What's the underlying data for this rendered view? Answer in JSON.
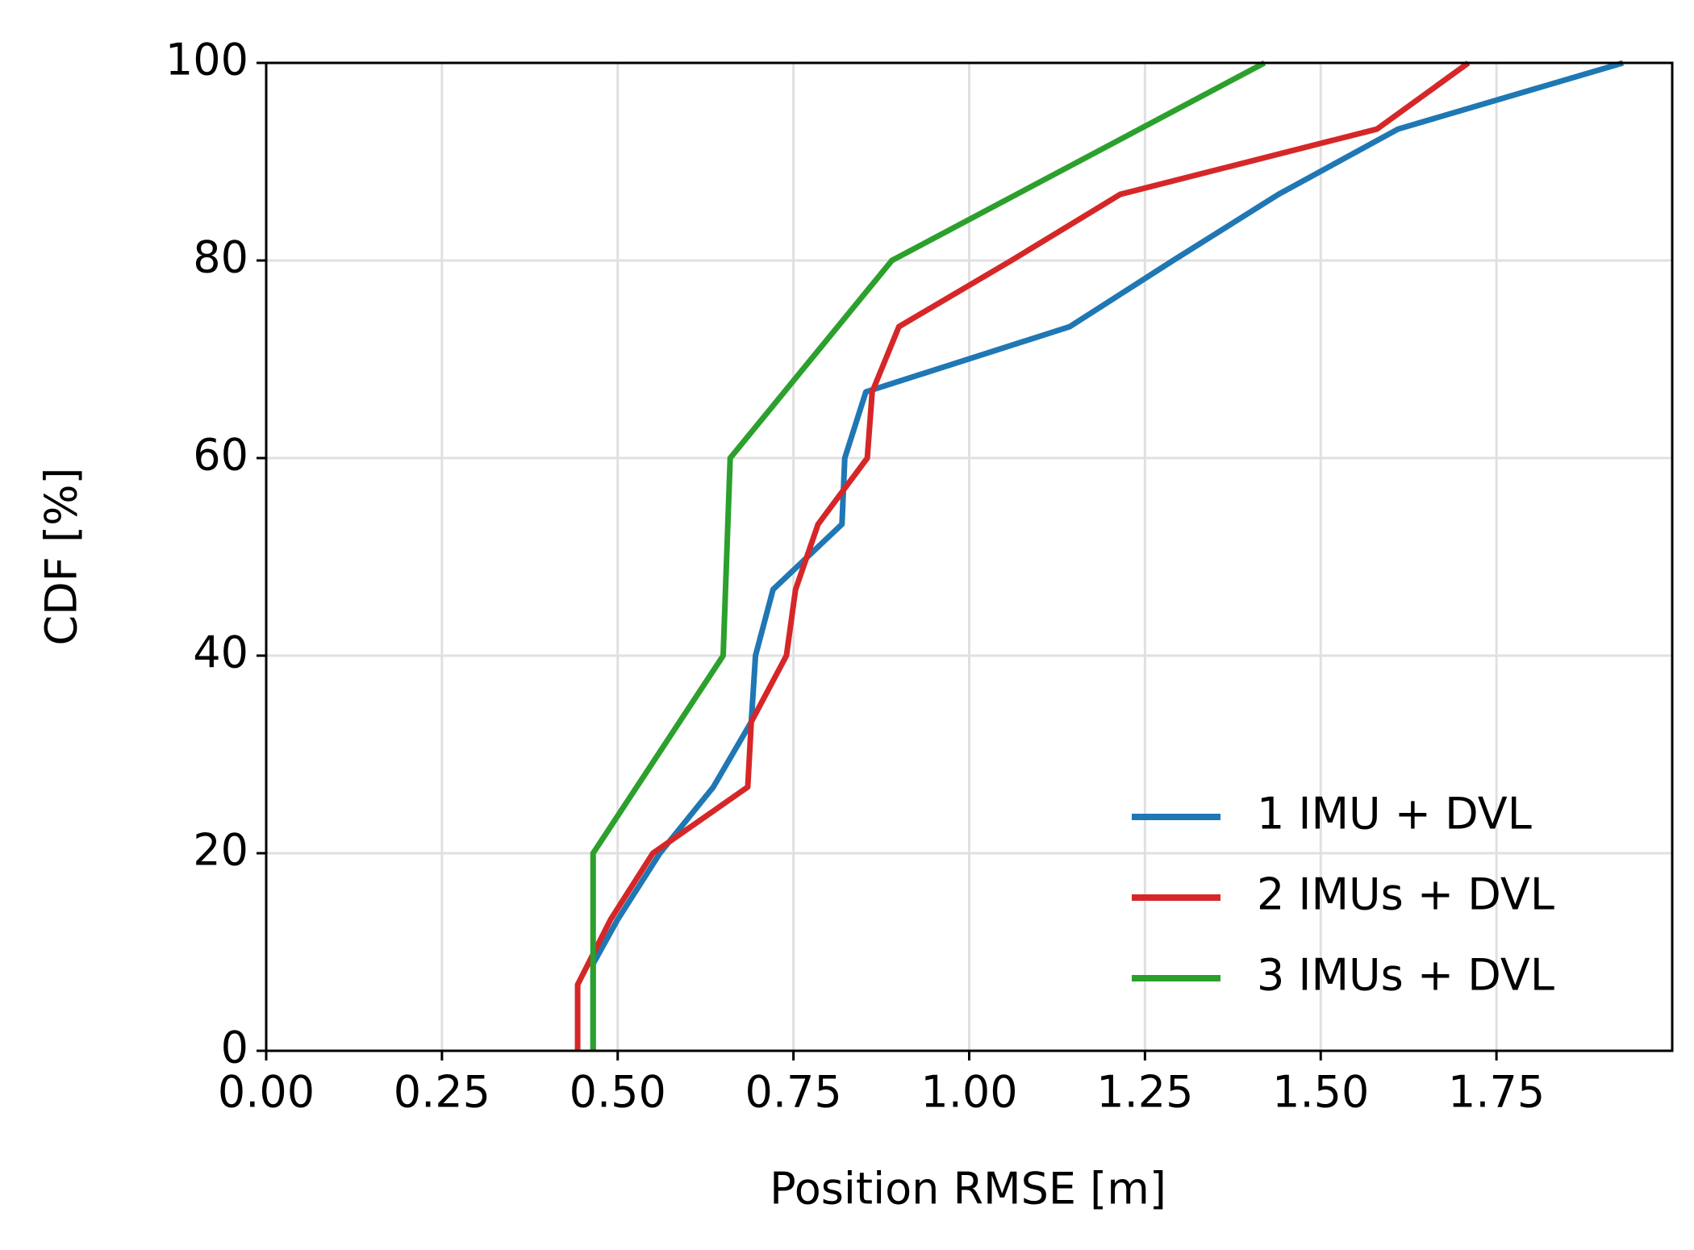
{
  "chart_data": {
    "type": "line",
    "x_label": "Position RMSE [m]",
    "y_label": "CDF [%]",
    "xlim": [
      0,
      2.0
    ],
    "ylim": [
      0,
      100
    ],
    "xticks": [
      {
        "value": 0,
        "label": "0.00"
      },
      {
        "value": 0.25,
        "label": "0.25"
      },
      {
        "value": 0.5,
        "label": "0.50"
      },
      {
        "value": 0.75,
        "label": "0.75"
      },
      {
        "value": 1.0,
        "label": "1.00"
      },
      {
        "value": 1.25,
        "label": "1.25"
      },
      {
        "value": 1.5,
        "label": "1.50"
      },
      {
        "value": 1.75,
        "label": "1.75"
      }
    ],
    "yticks": [
      0,
      20,
      40,
      60,
      80,
      100
    ],
    "grid": true,
    "legend": "lower right",
    "series": [
      {
        "name": "1 IMU + DVL",
        "color": "#1f77b4",
        "x": [
          0.465,
          0.465,
          0.5,
          0.56,
          0.636,
          0.69,
          0.696,
          0.721,
          0.819,
          0.823,
          0.853,
          1.143,
          1.29,
          1.44,
          1.61,
          1.93
        ],
        "values": [
          0,
          8.8,
          13.3,
          20,
          26.7,
          33.3,
          40,
          46.7,
          53.3,
          60,
          66.7,
          73.3,
          80,
          86.7,
          93.3,
          100
        ]
      },
      {
        "name": "2 IMUs + DVL",
        "color": "#d62728",
        "x": [
          0.443,
          0.443,
          0.49,
          0.55,
          0.685,
          0.69,
          0.74,
          0.753,
          0.785,
          0.855,
          0.862,
          0.9,
          1.06,
          1.215,
          1.58,
          1.71
        ],
        "values": [
          0,
          6.7,
          13.3,
          20,
          26.7,
          33.3,
          40,
          46.7,
          53.3,
          60,
          66.7,
          73.3,
          80,
          86.7,
          93.3,
          100
        ]
      },
      {
        "name": "3 IMUs + DVL",
        "color": "#2ca02c",
        "x": [
          0.465,
          0.465,
          0.65,
          0.66,
          0.89,
          1.42
        ],
        "values": [
          0,
          20,
          40,
          60,
          80,
          100
        ]
      }
    ]
  }
}
